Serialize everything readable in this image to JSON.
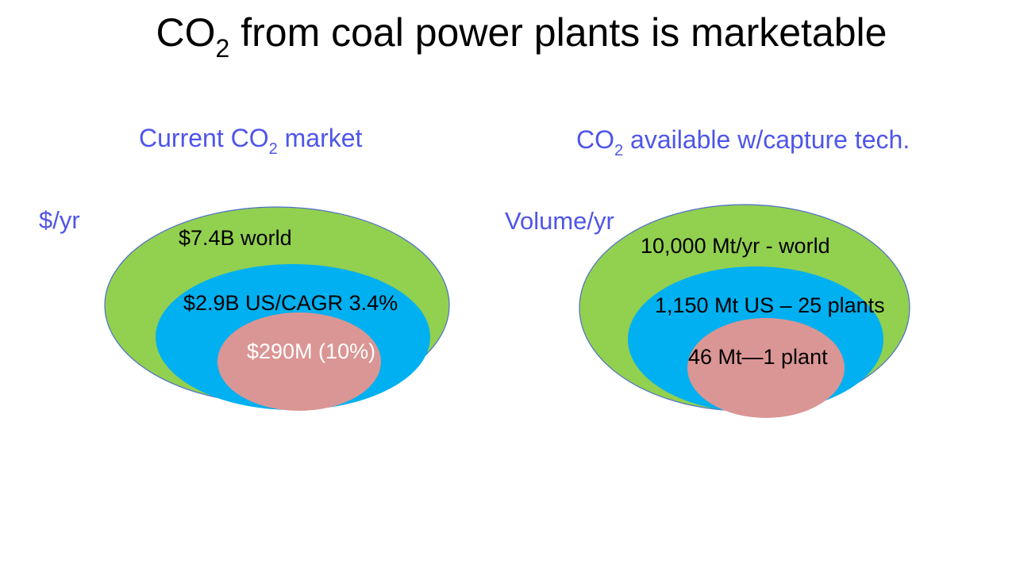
{
  "title": {
    "prefix": "CO",
    "subscript": "2",
    "suffix": " from coal power plants is marketable"
  },
  "left_panel": {
    "heading": {
      "prefix": "Current CO",
      "subscript": "2",
      "suffix": " market"
    },
    "axis_label": "$/yr",
    "rings": [
      {
        "label": "$7.4B world",
        "color": "#92d050"
      },
      {
        "label": "$2.9B US/CAGR 3.4%",
        "color": "#00b0f0"
      },
      {
        "label": "$290M (10%)",
        "color": "#da9694"
      }
    ]
  },
  "right_panel": {
    "heading": {
      "prefix": "CO",
      "subscript": "2",
      "suffix": " available w/capture tech."
    },
    "axis_label": "Volume/yr",
    "rings": [
      {
        "label": "10,000 Mt/yr - world",
        "color": "#92d050"
      },
      {
        "label": "1,150 Mt US – 25 plants",
        "color": "#00b0f0"
      },
      {
        "label": "46 Mt—1 plant",
        "color": "#da9694"
      }
    ]
  },
  "outline_color": "#4f70c8"
}
